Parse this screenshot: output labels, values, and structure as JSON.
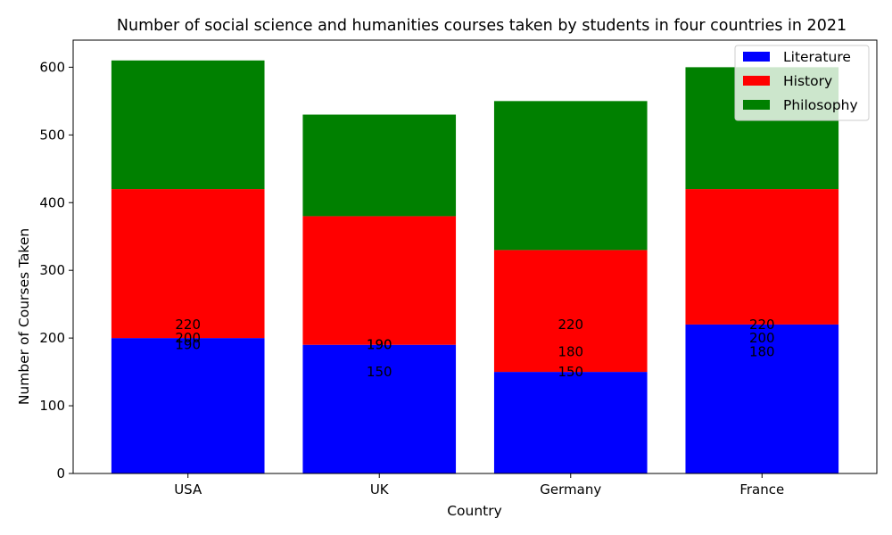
{
  "chart_data": {
    "type": "bar",
    "stacked": true,
    "title": "Number of social science and humanities courses taken by students in four countries in 2021",
    "xlabel": "Country",
    "ylabel": "Number of Courses Taken",
    "categories": [
      "USA",
      "UK",
      "Germany",
      "France"
    ],
    "series": [
      {
        "name": "Literature",
        "color": "#0000ff",
        "values": [
          200,
          190,
          150,
          220
        ]
      },
      {
        "name": "History",
        "color": "#ff0000",
        "values": [
          220,
          190,
          180,
          200
        ]
      },
      {
        "name": "Philosophy",
        "color": "#008000",
        "values": [
          190,
          150,
          220,
          180
        ]
      }
    ],
    "data_labels": [
      [
        "220",
        "200",
        "190"
      ],
      [
        "190",
        "190",
        "150"
      ],
      [
        "220",
        "180",
        "150"
      ],
      [
        "220",
        "200",
        "180"
      ]
    ],
    "data_label_values": [
      [
        220,
        200,
        190
      ],
      [
        190,
        190,
        150
      ],
      [
        220,
        180,
        150
      ],
      [
        220,
        200,
        180
      ]
    ],
    "ylim": [
      0,
      640
    ],
    "yticks": [
      0,
      100,
      200,
      300,
      400,
      500,
      600
    ],
    "legend_position": "top-right",
    "grid": false
  }
}
